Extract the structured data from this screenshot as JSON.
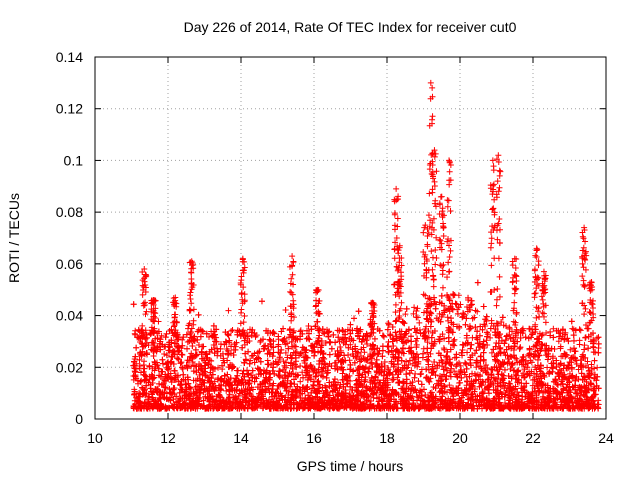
{
  "chart_data": {
    "type": "scatter",
    "title": "Day 226 of 2014, Rate Of TEC Index for receiver cut0",
    "xlabel": "GPS time / hours",
    "ylabel": "ROTI / TECUs",
    "xlim": [
      10,
      24
    ],
    "ylim": [
      0,
      0.14
    ],
    "xticks": [
      10,
      12,
      14,
      16,
      18,
      20,
      22,
      24
    ],
    "yticks": [
      0,
      0.02,
      0.04,
      0.06,
      0.08,
      0.1,
      0.12,
      0.14
    ],
    "xtick_labels": [
      "10",
      "12",
      "14",
      "16",
      "18",
      "20",
      "22",
      "24"
    ],
    "ytick_labels": [
      "0",
      "0.02",
      "0.04",
      "0.06",
      "0.08",
      "0.1",
      "0.12",
      "0.14"
    ],
    "grid": true,
    "marker": "plus",
    "color": "#ff0000",
    "data_start_hour": 11.05,
    "data_end_hour": 23.8,
    "series": [
      {
        "name": "ROTI",
        "density_points_per_hour": 520,
        "baseline_range": [
          0.004,
          0.035
        ],
        "spikes": [
          {
            "x": 11.35,
            "y": 0.058
          },
          {
            "x": 11.6,
            "y": 0.046
          },
          {
            "x": 12.2,
            "y": 0.047
          },
          {
            "x": 12.65,
            "y": 0.061
          },
          {
            "x": 14.05,
            "y": 0.062
          },
          {
            "x": 15.4,
            "y": 0.063
          },
          {
            "x": 16.1,
            "y": 0.05
          },
          {
            "x": 17.6,
            "y": 0.045
          },
          {
            "x": 18.25,
            "y": 0.089
          },
          {
            "x": 18.35,
            "y": 0.067
          },
          {
            "x": 19.05,
            "y": 0.075
          },
          {
            "x": 19.2,
            "y": 0.13
          },
          {
            "x": 19.3,
            "y": 0.104
          },
          {
            "x": 19.5,
            "y": 0.086
          },
          {
            "x": 19.7,
            "y": 0.1
          },
          {
            "x": 20.9,
            "y": 0.1
          },
          {
            "x": 21.05,
            "y": 0.102
          },
          {
            "x": 21.5,
            "y": 0.062
          },
          {
            "x": 22.1,
            "y": 0.066
          },
          {
            "x": 22.3,
            "y": 0.057
          },
          {
            "x": 23.4,
            "y": 0.074
          },
          {
            "x": 23.6,
            "y": 0.053
          }
        ]
      }
    ]
  }
}
